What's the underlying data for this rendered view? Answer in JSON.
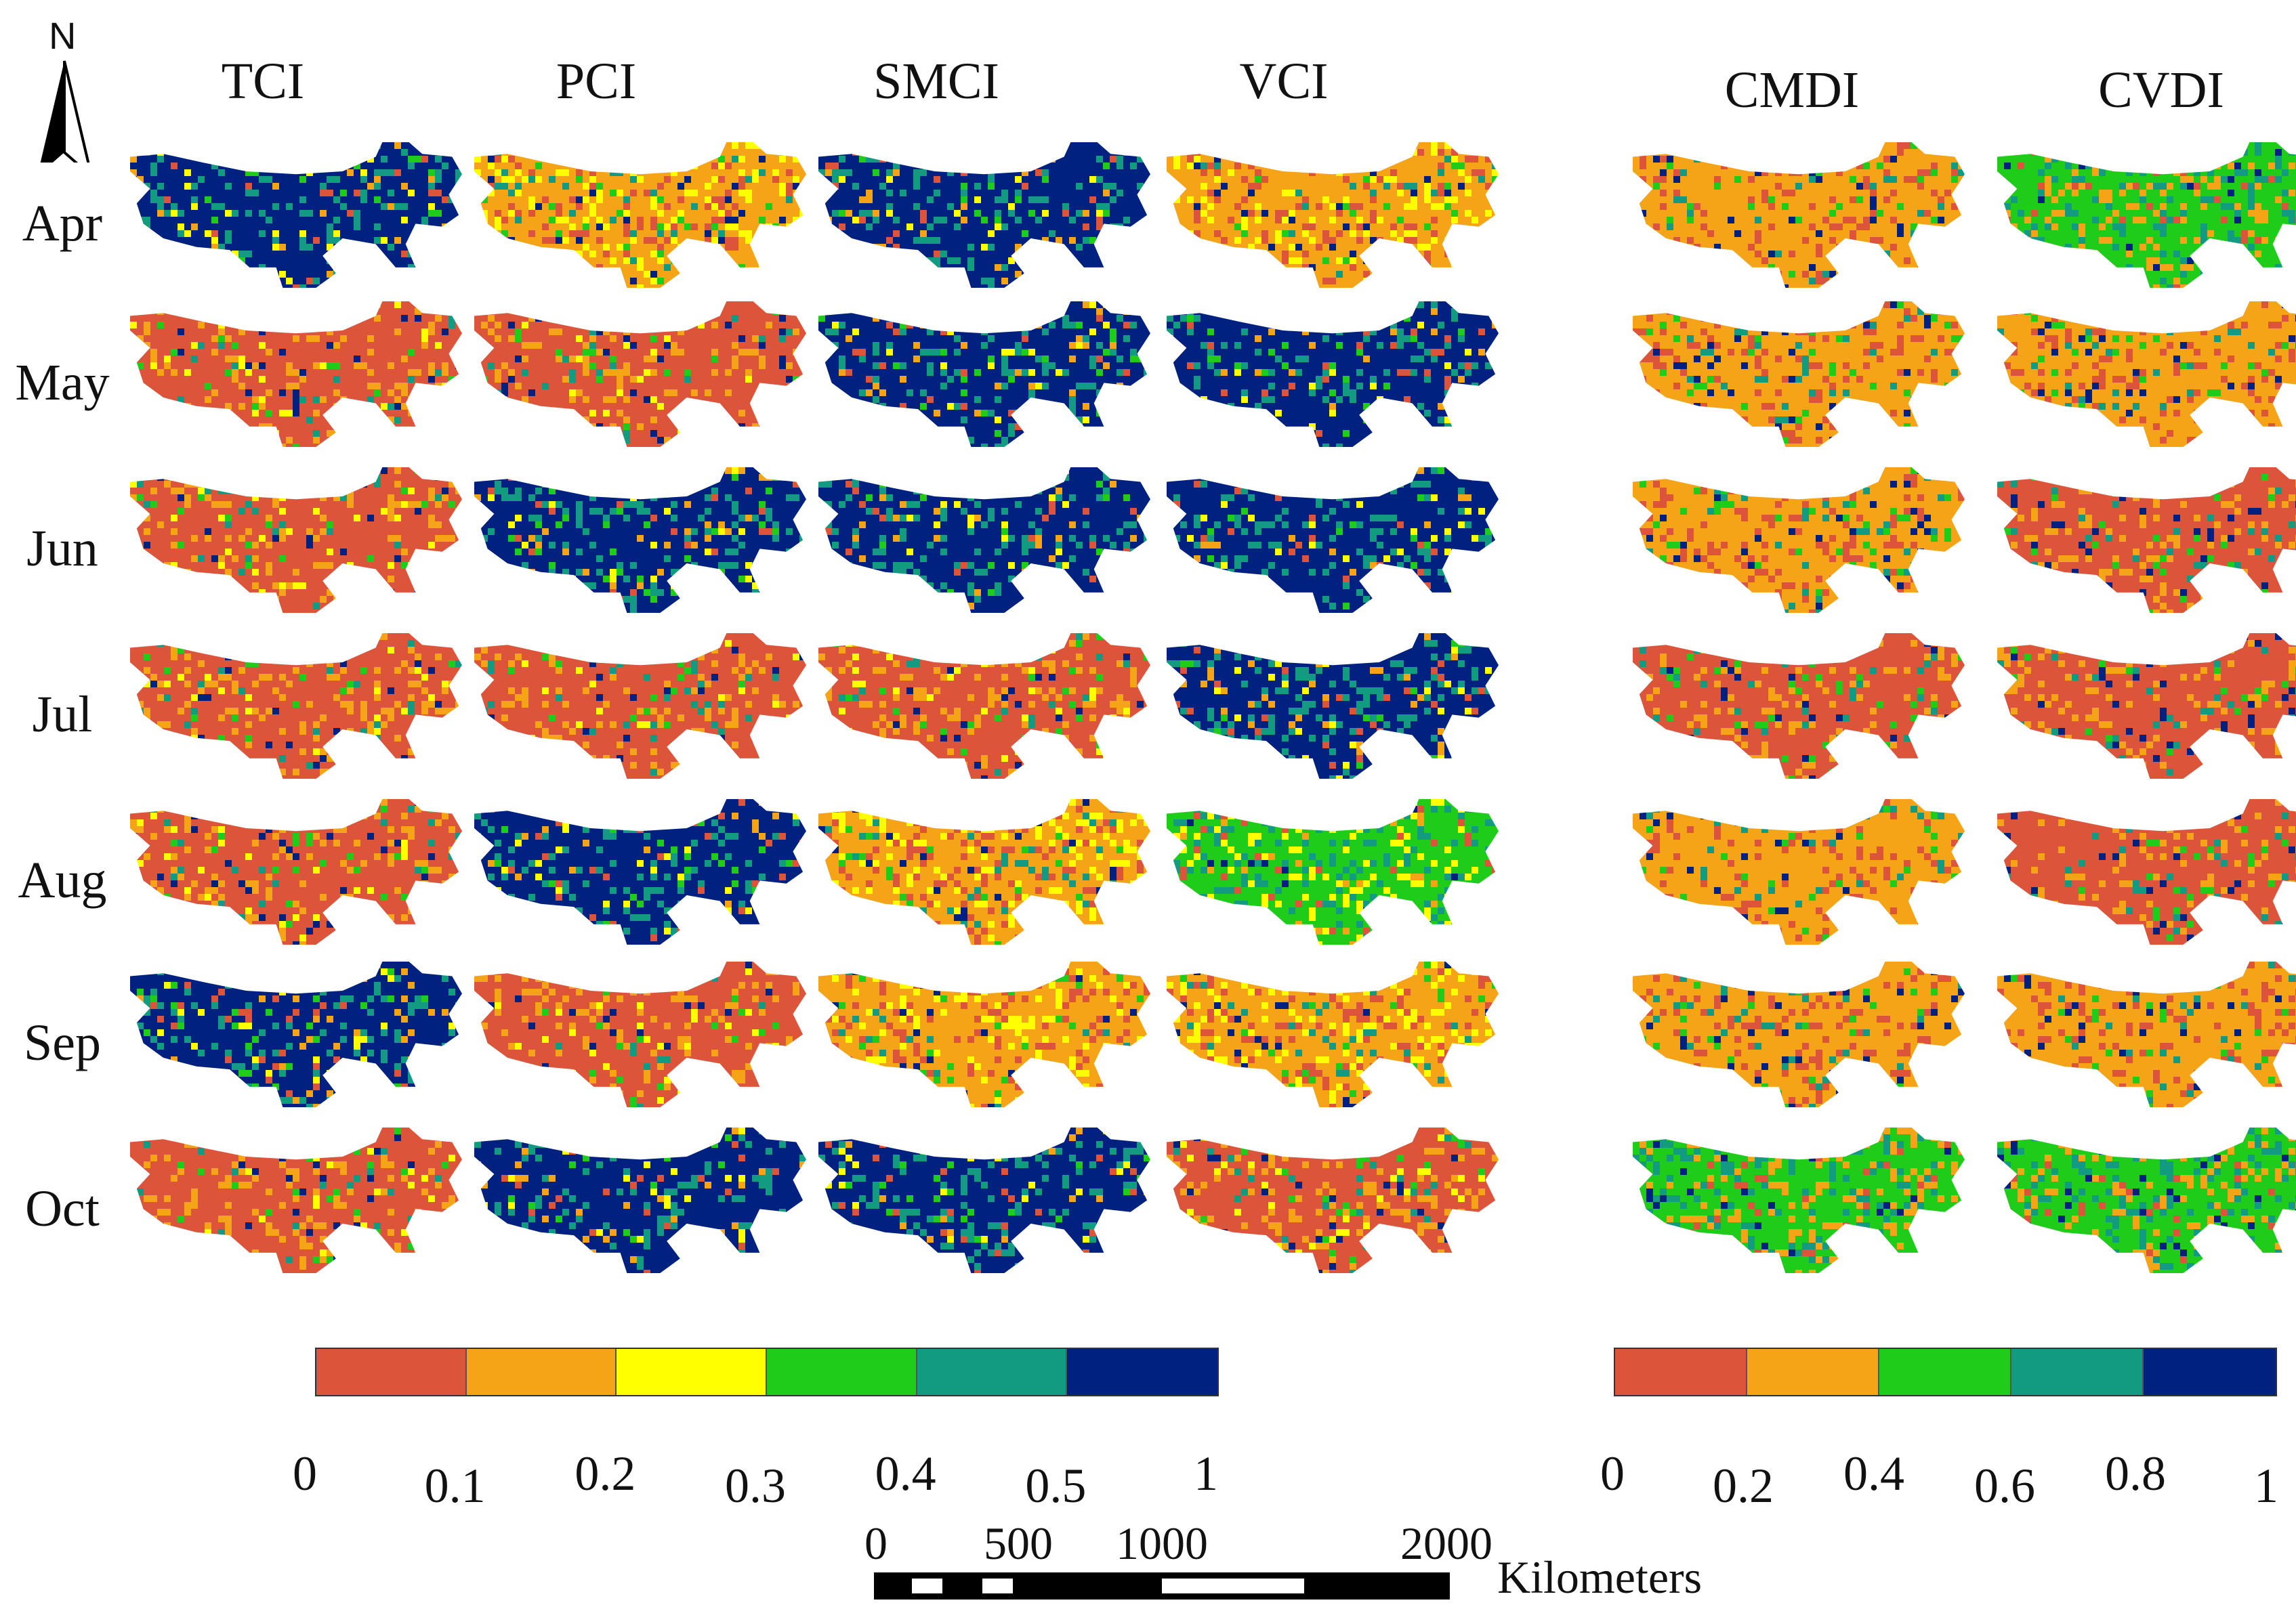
{
  "north": {
    "label": "N",
    "icon": "north-arrow-icon"
  },
  "left_columns": [
    "TCI",
    "PCI",
    "SMCI",
    "VCI"
  ],
  "right_columns": [
    "CMDI",
    "CVDI"
  ],
  "months": [
    "Apr",
    "May",
    "Jun",
    "Jul",
    "Aug",
    "Sep",
    "Oct"
  ],
  "left_legend": {
    "colors": [
      "#dc553a",
      "#f5a418",
      "#ffff00",
      "#1fcc1a",
      "#139b82",
      "#002180"
    ],
    "ticks": [
      "0",
      "0.1",
      "0.2",
      "0.3",
      "0.4",
      "0.5",
      "1"
    ]
  },
  "right_legend": {
    "colors": [
      "#dc553a",
      "#f5a418",
      "#1fcc1a",
      "#139b82",
      "#002180"
    ],
    "ticks": [
      "0",
      "0.2",
      "0.4",
      "0.6",
      "0.8",
      "1"
    ]
  },
  "scale": {
    "ticks": [
      "0",
      "500",
      "1000",
      "2000"
    ],
    "unit": "Kilometers"
  },
  "palette": {
    "red": "#dc553a",
    "orange": "#f5a418",
    "yellow": "#ffff00",
    "green": "#1fcc1a",
    "teal": "#139b82",
    "navy": "#002180"
  },
  "dominant_class": {
    "TCI": [
      "navy",
      "red",
      "red",
      "red",
      "red",
      "navy",
      "red"
    ],
    "PCI": [
      "orange",
      "red",
      "navy",
      "red",
      "navy",
      "red",
      "navy"
    ],
    "SMCI": [
      "navy",
      "navy",
      "navy",
      "red",
      "orange",
      "orange",
      "navy"
    ],
    "VCI": [
      "orange",
      "navy",
      "navy",
      "navy",
      "green",
      "orange",
      "red"
    ],
    "CMDI": [
      "orange",
      "orange",
      "orange",
      "red",
      "orange",
      "orange",
      "green"
    ],
    "CVDI": [
      "green",
      "orange",
      "red",
      "red",
      "red",
      "orange",
      "green"
    ]
  }
}
